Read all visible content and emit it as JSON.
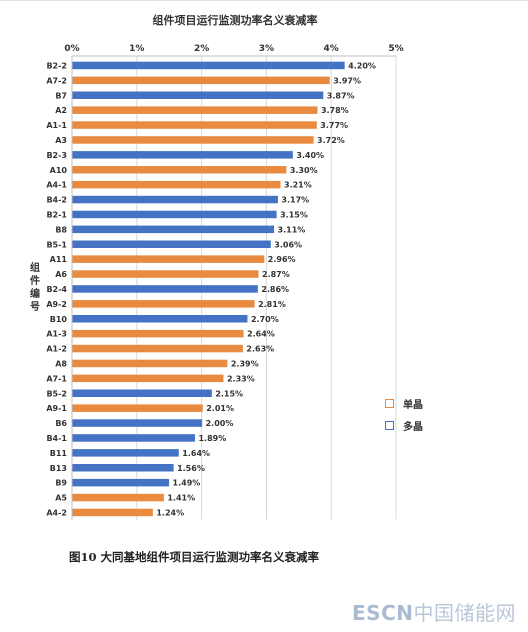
{
  "chart_data": {
    "type": "bar",
    "orientation": "horizontal",
    "title": "组件项目运行监测功率名义衰减率",
    "ylabel": "组件编号",
    "xlim": [
      0,
      5
    ],
    "x_ticks": [
      "0%",
      "1%",
      "2%",
      "3%",
      "4%",
      "5%"
    ],
    "x_axis_position": "top",
    "grid": true,
    "legend_position": "right",
    "series": [
      {
        "name": "单晶",
        "color": "#e88a3f"
      },
      {
        "name": "多晶",
        "color": "#4472c4"
      }
    ],
    "bars": [
      {
        "category": "B2-2",
        "value": 4.2,
        "label": "4.20%",
        "series": "多晶"
      },
      {
        "category": "A7-2",
        "value": 3.97,
        "label": "3.97%",
        "series": "单晶"
      },
      {
        "category": "B7",
        "value": 3.87,
        "label": "3.87%",
        "series": "多晶"
      },
      {
        "category": "A2",
        "value": 3.78,
        "label": "3.78%",
        "series": "单晶"
      },
      {
        "category": "A1-1",
        "value": 3.77,
        "label": "3.77%",
        "series": "单晶"
      },
      {
        "category": "A3",
        "value": 3.72,
        "label": "3.72%",
        "series": "单晶"
      },
      {
        "category": "B2-3",
        "value": 3.4,
        "label": "3.40%",
        "series": "多晶"
      },
      {
        "category": "A10",
        "value": 3.3,
        "label": "3.30%",
        "series": "单晶"
      },
      {
        "category": "A4-1",
        "value": 3.21,
        "label": "3.21%",
        "series": "单晶"
      },
      {
        "category": "B4-2",
        "value": 3.17,
        "label": "3.17%",
        "series": "多晶"
      },
      {
        "category": "B2-1",
        "value": 3.15,
        "label": "3.15%",
        "series": "多晶"
      },
      {
        "category": "B8",
        "value": 3.11,
        "label": "3.11%",
        "series": "多晶"
      },
      {
        "category": "B5-1",
        "value": 3.06,
        "label": "3.06%",
        "series": "多晶"
      },
      {
        "category": "A11",
        "value": 2.96,
        "label": "2.96%",
        "series": "单晶"
      },
      {
        "category": "A6",
        "value": 2.87,
        "label": "2.87%",
        "series": "单晶"
      },
      {
        "category": "B2-4",
        "value": 2.86,
        "label": "2.86%",
        "series": "多晶"
      },
      {
        "category": "A9-2",
        "value": 2.81,
        "label": "2.81%",
        "series": "单晶"
      },
      {
        "category": "B10",
        "value": 2.7,
        "label": "2.70%",
        "series": "多晶"
      },
      {
        "category": "A1-3",
        "value": 2.64,
        "label": "2.64%",
        "series": "单晶"
      },
      {
        "category": "A1-2",
        "value": 2.63,
        "label": "2.63%",
        "series": "单晶"
      },
      {
        "category": "A8",
        "value": 2.39,
        "label": "2.39%",
        "series": "单晶"
      },
      {
        "category": "A7-1",
        "value": 2.33,
        "label": "2.33%",
        "series": "单晶"
      },
      {
        "category": "B5-2",
        "value": 2.15,
        "label": "2.15%",
        "series": "多晶"
      },
      {
        "category": "A9-1",
        "value": 2.01,
        "label": "2.01%",
        "series": "单晶"
      },
      {
        "category": "B6",
        "value": 2.0,
        "label": "2.00%",
        "series": "多晶"
      },
      {
        "category": "B4-1",
        "value": 1.89,
        "label": "1.89%",
        "series": "多晶"
      },
      {
        "category": "B11",
        "value": 1.64,
        "label": "1.64%",
        "series": "多晶"
      },
      {
        "category": "B13",
        "value": 1.56,
        "label": "1.56%",
        "series": "多晶"
      },
      {
        "category": "B9",
        "value": 1.49,
        "label": "1.49%",
        "series": "多晶"
      },
      {
        "category": "A5",
        "value": 1.41,
        "label": "1.41%",
        "series": "单晶"
      },
      {
        "category": "A4-2",
        "value": 1.24,
        "label": "1.24%",
        "series": "单晶"
      }
    ]
  },
  "caption": "图10  大同基地组件项目运行监测功率名义衰减率",
  "watermark": {
    "brand": "ESCN",
    "site": "中国储能网"
  }
}
